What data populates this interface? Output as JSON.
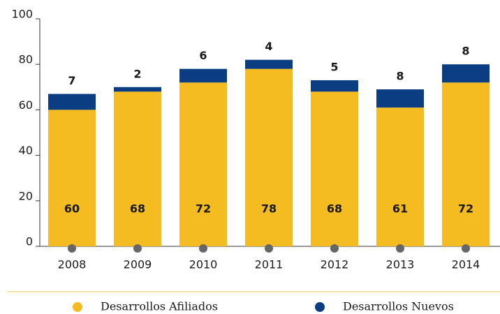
{
  "chart_data": {
    "type": "stacked-bar",
    "categories": [
      "2008",
      "2009",
      "2010",
      "2011",
      "2012",
      "2013",
      "2014"
    ],
    "series": [
      {
        "name": "Desarrollos Afiliados",
        "color": "#f5bc22",
        "values": [
          60,
          68,
          72,
          78,
          68,
          61,
          72
        ]
      },
      {
        "name": "Desarrollos Nuevos",
        "color": "#0a3d82",
        "values": [
          7,
          2,
          6,
          4,
          5,
          8,
          8
        ]
      }
    ],
    "ylim": [
      0,
      100
    ],
    "yticks": [
      0,
      20,
      40,
      60,
      80,
      100
    ],
    "grid": false,
    "legend": "bottom"
  }
}
